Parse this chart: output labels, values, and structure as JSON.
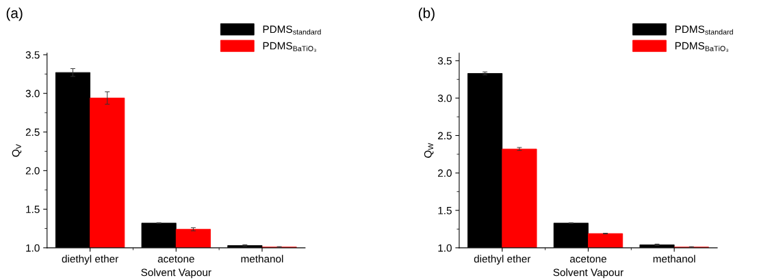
{
  "chart_data": [
    {
      "type": "bar",
      "title": "(a)",
      "xlabel": "Solvent Vapour",
      "ylabel": "Q$_{V}$",
      "categories": [
        "diethyl ether",
        "acetone",
        "methanol"
      ],
      "series": [
        {
          "name": "PDMS$_{standard}$",
          "color": "#000000",
          "values": [
            3.27,
            1.32,
            1.03
          ],
          "errors": [
            0.05,
            0.005,
            0.01
          ]
        },
        {
          "name": "PDMS$_{BaTiO₃}$",
          "color": "#ff0000",
          "values": [
            2.94,
            1.24,
            1.01
          ],
          "errors": [
            0.08,
            0.02,
            0.005
          ]
        }
      ],
      "ylim": [
        1.0,
        3.52
      ],
      "yticks": [
        {
          "value": 1.0,
          "label": "1.0"
        },
        {
          "value": 1.5,
          "label": "1.5"
        },
        {
          "value": 2.0,
          "label": "2.0"
        },
        {
          "value": 2.5,
          "label": "2.5"
        },
        {
          "value": 3.0,
          "label": "3.0"
        },
        {
          "value": 3.5,
          "label": "3.5"
        }
      ],
      "grid": false,
      "legend": "top right"
    },
    {
      "type": "bar",
      "title": "(b)",
      "xlabel": "Solvent Vapour",
      "ylabel": "Q$_{W}$",
      "categories": [
        "diethyl ether",
        "acetone",
        "methanol"
      ],
      "series": [
        {
          "name": "PDMS$_{standard}$",
          "color": "#000000",
          "values": [
            3.33,
            1.33,
            1.04
          ],
          "errors": [
            0.02,
            0.005,
            0.01
          ]
        },
        {
          "name": "PDMS$_{BaTiO₃}$",
          "color": "#ff0000",
          "values": [
            2.32,
            1.19,
            1.01
          ],
          "errors": [
            0.02,
            0.005,
            0.005
          ]
        }
      ],
      "ylim": [
        1.0,
        3.6
      ],
      "yticks": [
        {
          "value": 1.0,
          "label": "1.0"
        },
        {
          "value": 1.5,
          "label": "1.5"
        },
        {
          "value": 2.0,
          "label": "2.0"
        },
        {
          "value": 2.5,
          "label": "2.5"
        },
        {
          "value": 3.0,
          "label": "3.0"
        },
        {
          "value": 3.5,
          "label": "3.5"
        }
      ],
      "grid": false,
      "legend": "top right"
    }
  ]
}
